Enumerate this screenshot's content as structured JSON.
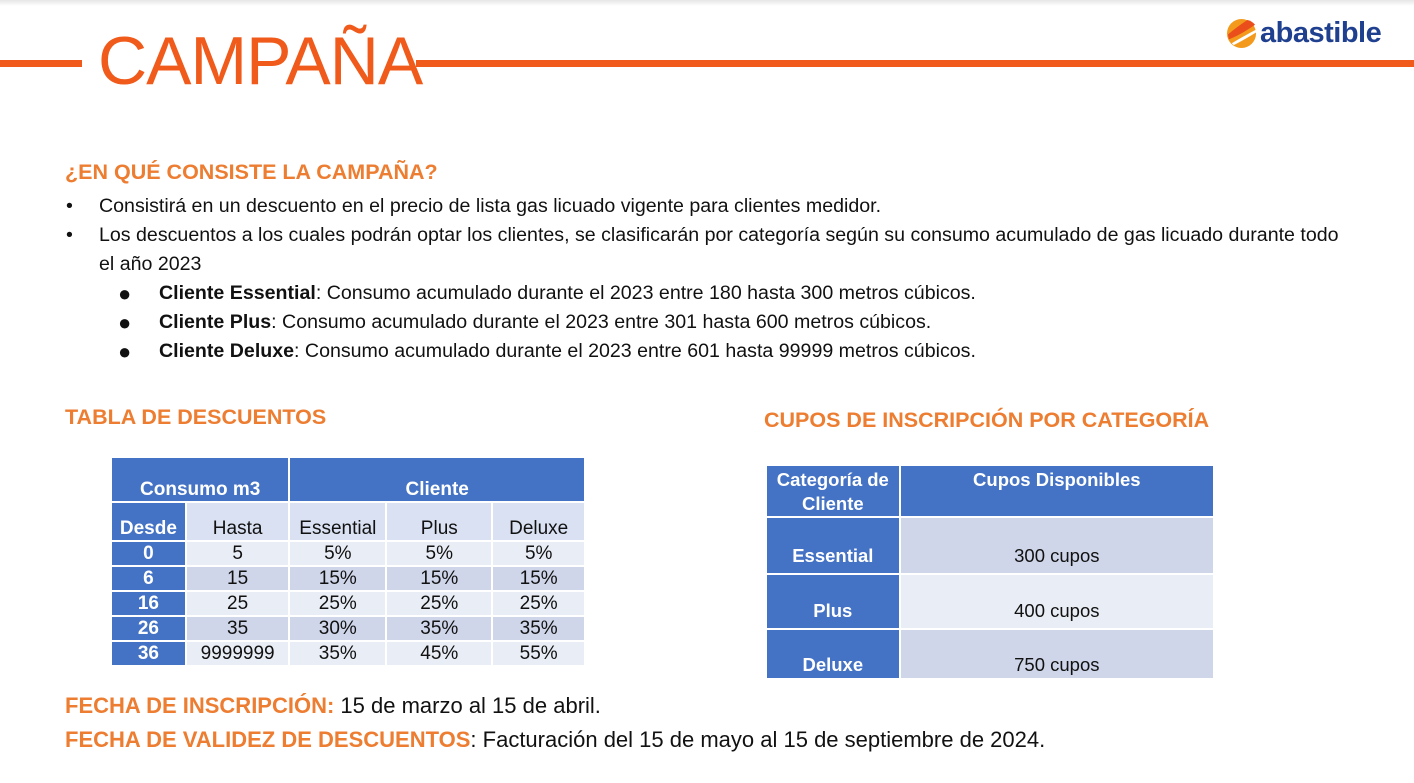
{
  "header": {
    "title": "CAMPAÑA",
    "logo_text": "abastible",
    "brand_colors": {
      "orange": "#f05a1a",
      "blue": "#1f3f8f",
      "accent": "#ed7d31",
      "table_blue": "#4472c4"
    }
  },
  "intro": {
    "heading": "¿EN QUÉ CONSISTE LA CAMPAÑA?",
    "bullets": [
      "Consistirá en un descuento en el precio de lista gas licuado vigente para clientes medidor.",
      "Los descuentos a los cuales podrán optar los clientes, se clasificarán por categoría según su consumo acumulado de gas licuado durante todo el año 2023"
    ],
    "sub_bullets": [
      {
        "term": "Cliente Essential",
        "text": ": Consumo acumulado durante el 2023 entre 180 hasta 300 metros cúbicos."
      },
      {
        "term": "Cliente Plus",
        "text": ": Consumo acumulado durante el 2023 entre 301 hasta 600 metros cúbicos."
      },
      {
        "term": "Cliente Deluxe",
        "text": ": Consumo acumulado durante el 2023 entre 601 hasta 99999 metros cúbicos."
      }
    ]
  },
  "discount_table": {
    "heading": "TABLA DE DESCUENTOS",
    "group_headers": [
      "Consumo m3",
      "Cliente"
    ],
    "columns": [
      "Desde",
      "Hasta",
      "Essential",
      "Plus",
      "Deluxe"
    ],
    "rows": [
      [
        "0",
        "5",
        "5%",
        "5%",
        "5%"
      ],
      [
        "6",
        "15",
        "15%",
        "15%",
        "15%"
      ],
      [
        "16",
        "25",
        "25%",
        "25%",
        "25%"
      ],
      [
        "26",
        "35",
        "30%",
        "35%",
        "35%"
      ],
      [
        "36",
        "9999999",
        "35%",
        "45%",
        "55%"
      ]
    ]
  },
  "cupos_table": {
    "heading": "CUPOS DE INSCRIPCIÓN POR CATEGORÍA",
    "columns": [
      "Categoría de Cliente",
      "Cupos Disponibles"
    ],
    "rows": [
      [
        "Essential",
        "300 cupos"
      ],
      [
        "Plus",
        "400 cupos"
      ],
      [
        "Deluxe",
        "750 cupos"
      ]
    ]
  },
  "dates": {
    "inscripcion_label": "FECHA DE INSCRIPCIÓN:",
    "inscripcion_value": " 15 de marzo al 15 de abril.",
    "validez_label": "FECHA DE VALIDEZ DE DESCUENTOS",
    "validez_value": ": Facturación del 15 de mayo al 15 de septiembre de 2024."
  }
}
